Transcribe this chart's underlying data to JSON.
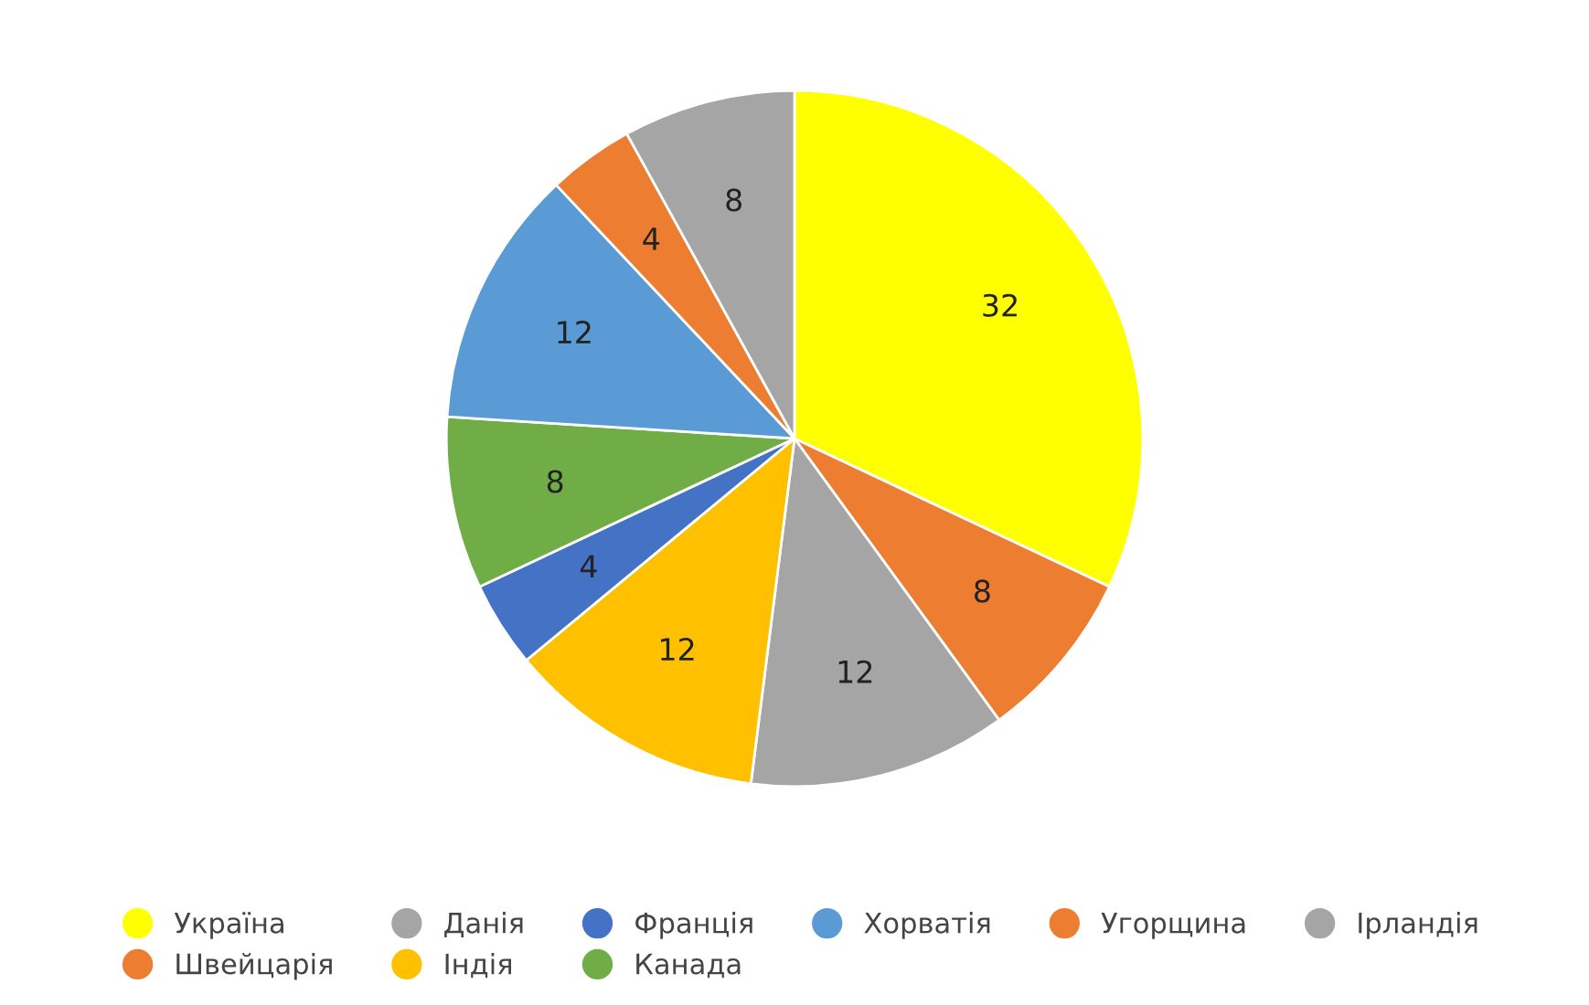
{
  "chart_data": {
    "type": "pie",
    "categories": [
      "Україна",
      "Швейцарія",
      "Данія",
      "Індія",
      "Франція",
      "Канада",
      "Хорватія",
      "Угорщина",
      "Ірландія"
    ],
    "values": [
      32,
      8,
      12,
      12,
      4,
      8,
      12,
      4,
      8
    ],
    "colors": [
      "#ffff00",
      "#ed7d31",
      "#a5a5a5",
      "#ffc000",
      "#4472c4",
      "#70ad47",
      "#5b9bd5",
      "#ed7d31",
      "#a5a5a5"
    ],
    "data_labels": true,
    "legend": "bottom"
  }
}
